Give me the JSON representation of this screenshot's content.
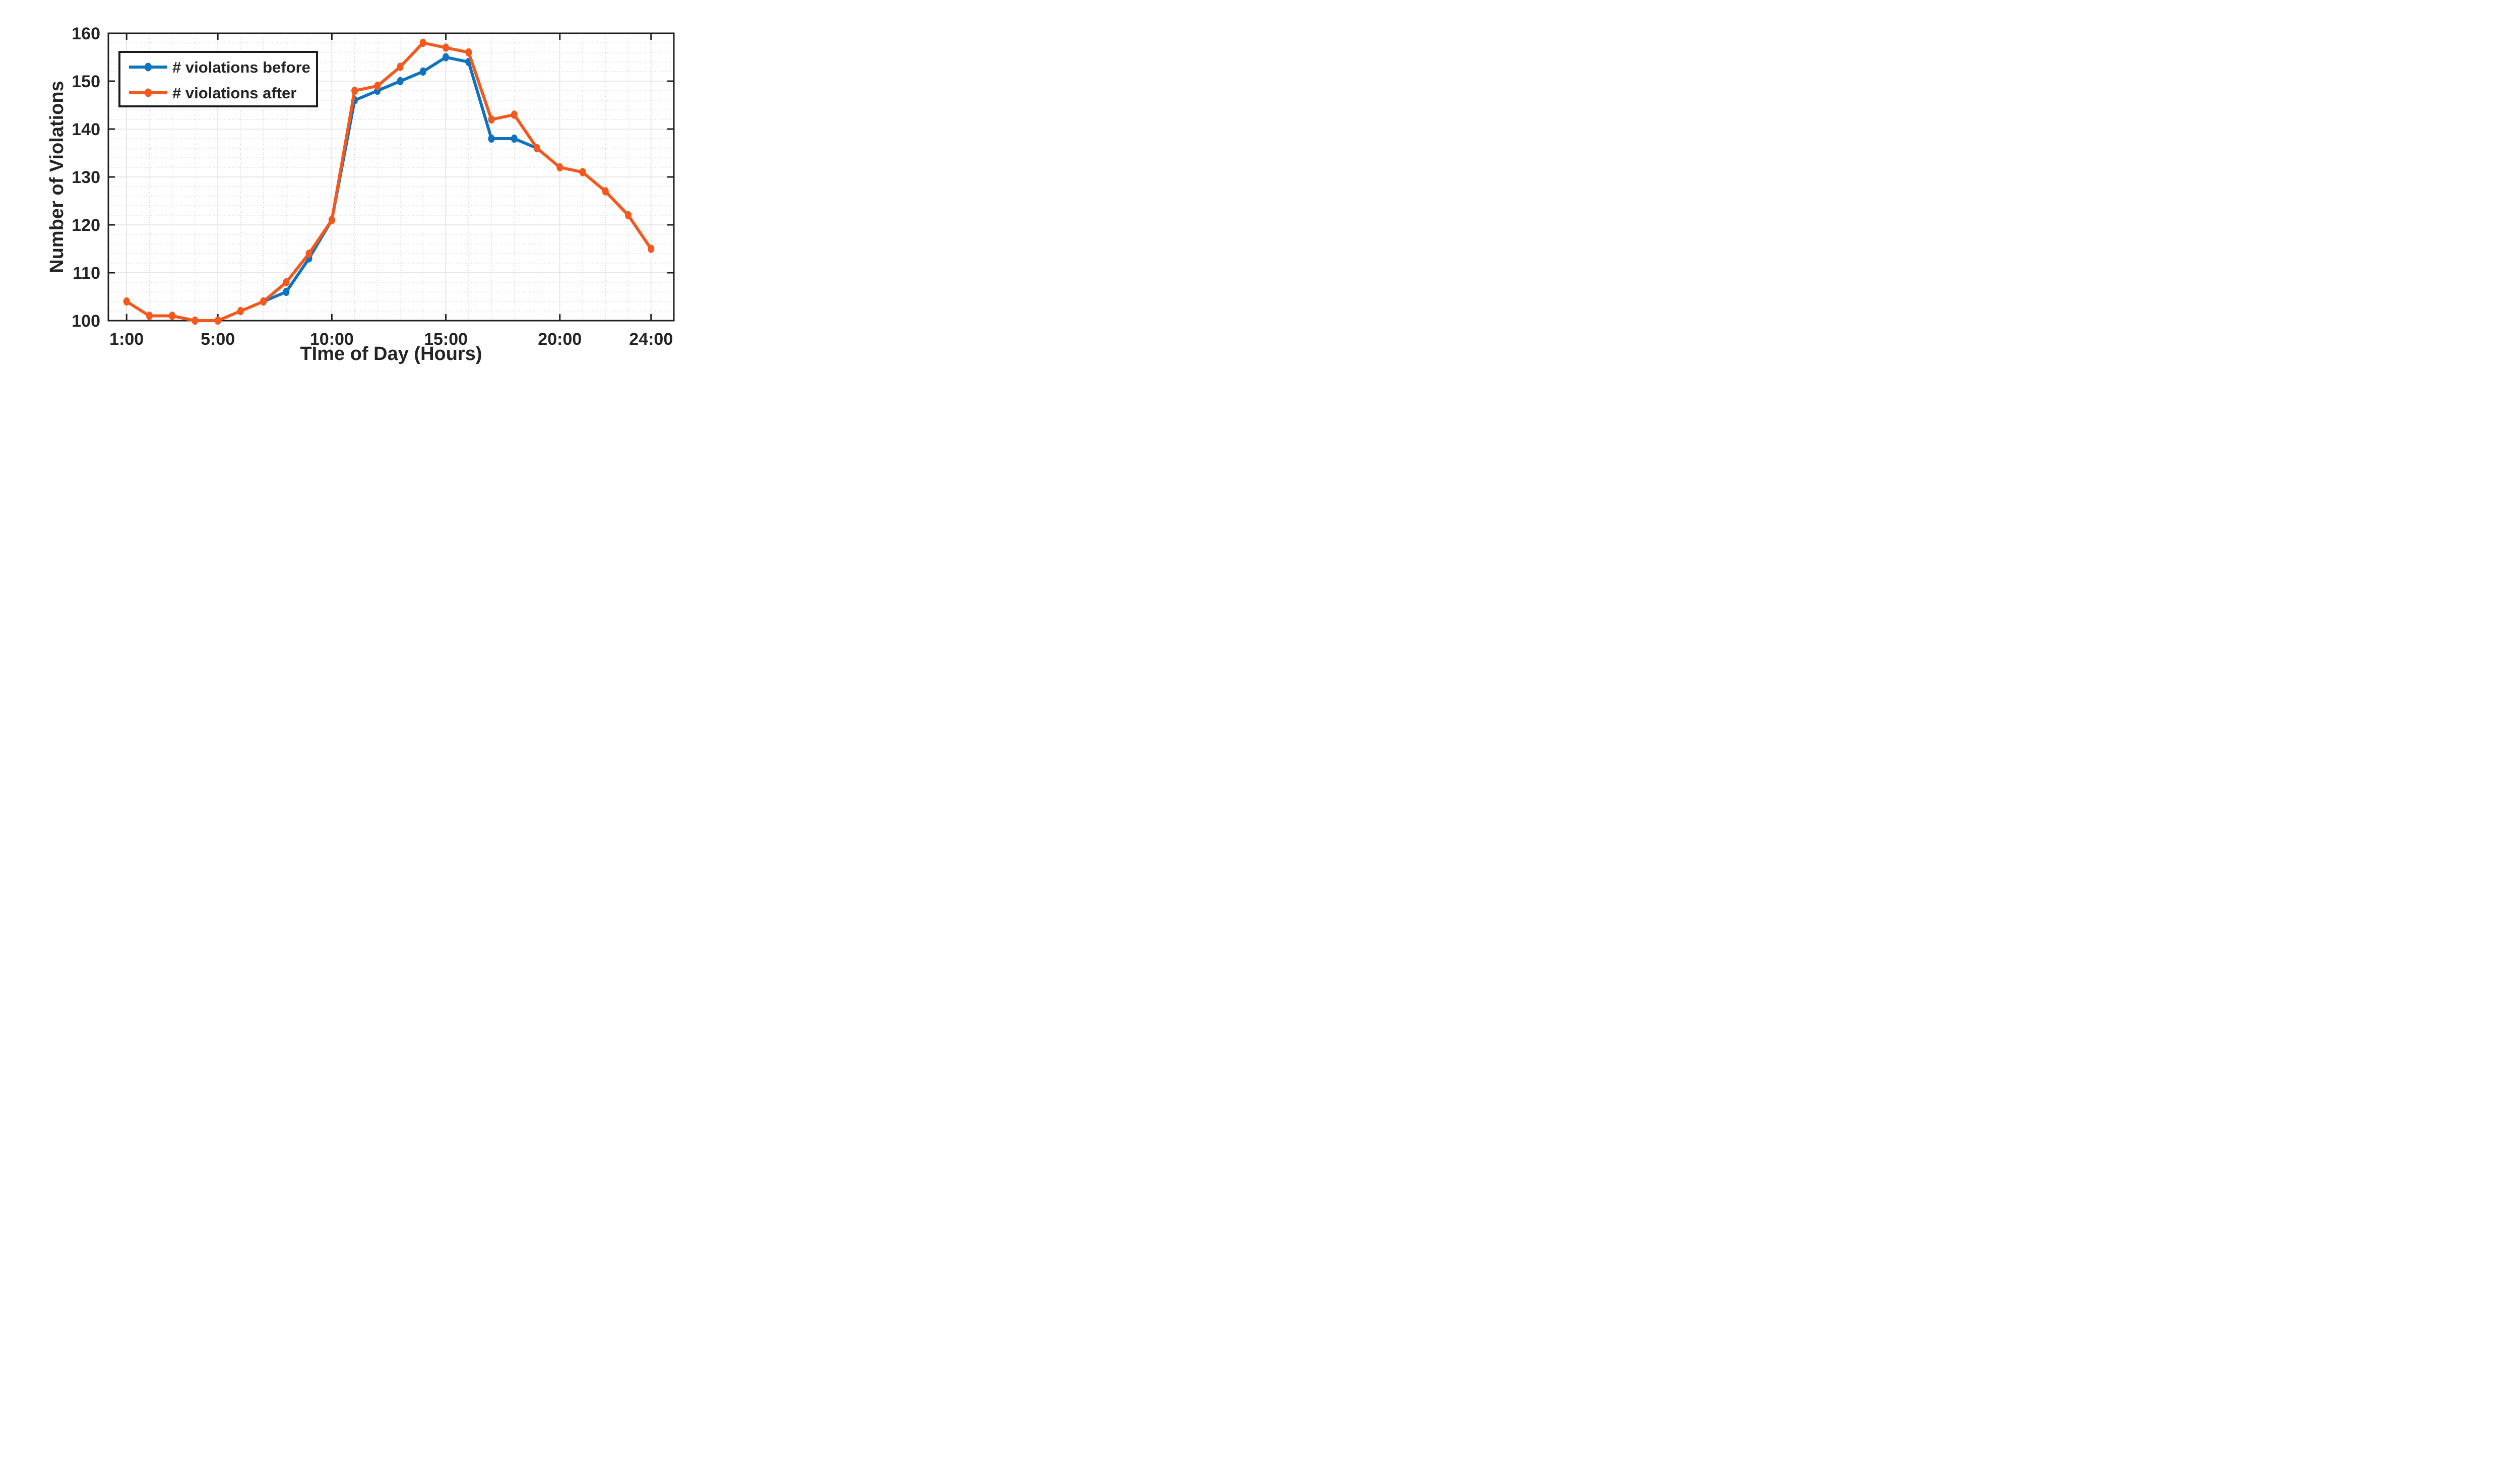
{
  "chart_data": {
    "type": "line",
    "title": "",
    "xlabel": "TIme of Day (Hours)",
    "ylabel": "Number of Violations",
    "xlim": [
      0.2,
      25
    ],
    "ylim": [
      100,
      160
    ],
    "x_major_ticks": [
      {
        "value": 1,
        "label": "1:00"
      },
      {
        "value": 5,
        "label": "5:00"
      },
      {
        "value": 10,
        "label": "10:00"
      },
      {
        "value": 15,
        "label": "15:00"
      },
      {
        "value": 20,
        "label": "20:00"
      },
      {
        "value": 24,
        "label": "24:00"
      }
    ],
    "y_major_ticks": [
      {
        "value": 100,
        "label": "100"
      },
      {
        "value": 110,
        "label": "110"
      },
      {
        "value": 120,
        "label": "120"
      },
      {
        "value": 130,
        "label": "130"
      },
      {
        "value": 140,
        "label": "140"
      },
      {
        "value": 150,
        "label": "150"
      },
      {
        "value": 160,
        "label": "160"
      }
    ],
    "grid": {
      "major": true,
      "minor": true,
      "x_minor_step_hours": 1,
      "y_minor_step": 2,
      "major_color": "#e0e0e0",
      "minor_color": "#c9c9c9"
    },
    "axis_color": "#1f1f1f",
    "background": "#ffffff",
    "legend": {
      "position": "top-left",
      "border_color": "#1a1a1a",
      "fill": "#ffffff",
      "entries": [
        {
          "label": "# violations before",
          "color": "#0e73be"
        },
        {
          "label": "# violations after",
          "color": "#f3581d"
        }
      ]
    },
    "series": [
      {
        "name": "# violations before",
        "color": "#0e73be",
        "x": [
          7,
          8,
          9,
          10,
          11,
          12,
          13,
          14,
          15,
          16,
          17,
          18,
          19
        ],
        "values": [
          104,
          106,
          113,
          121,
          146,
          148,
          150,
          152,
          155,
          154,
          138,
          138,
          136
        ]
      },
      {
        "name": "# violations after",
        "color": "#f3581d",
        "x": [
          1,
          2,
          3,
          4,
          5,
          6,
          7,
          8,
          9,
          10,
          11,
          12,
          13,
          14,
          15,
          16,
          17,
          18,
          19,
          20,
          21,
          22,
          23,
          24
        ],
        "values": [
          104,
          101,
          101,
          100,
          100,
          102,
          104,
          108,
          114,
          121,
          148,
          149,
          153,
          158,
          157,
          156,
          142,
          143,
          136,
          132,
          131,
          127,
          122,
          115
        ]
      }
    ]
  }
}
